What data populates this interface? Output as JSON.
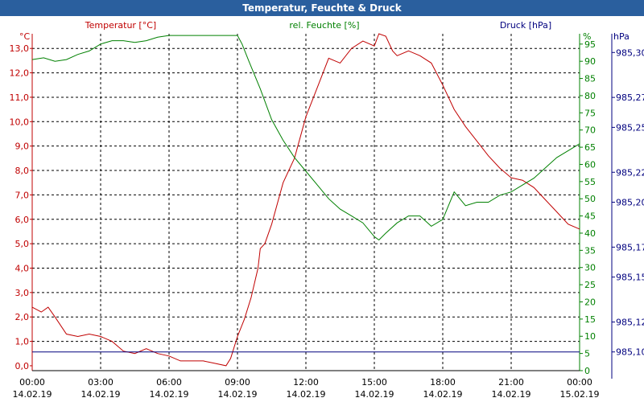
{
  "window": {
    "title": "Temperatur, Feuchte & Druck"
  },
  "colors": {
    "temperature": "#c00000",
    "humidity": "#008000",
    "pressure": "#00007f",
    "titlebar": "#2a5f9e"
  },
  "chart_data": {
    "type": "line",
    "title": "Temperatur, Feuchte & Druck",
    "grid": true,
    "x_tick_labels": [
      [
        "00:00",
        "14.02.19"
      ],
      [
        "03:00",
        "14.02.19"
      ],
      [
        "06:00",
        "14.02.19"
      ],
      [
        "09:00",
        "14.02.19"
      ],
      [
        "12:00",
        "14.02.19"
      ],
      [
        "15:00",
        "14.02.19"
      ],
      [
        "18:00",
        "14.02.19"
      ],
      [
        "21:00",
        "14.02.19"
      ],
      [
        "00:00",
        "15.02.19"
      ]
    ],
    "x_range_hours": [
      0,
      24
    ],
    "axes": {
      "temperature": {
        "label": "Temperatur [°C]",
        "unit": "°C",
        "range": [
          -0.2,
          13.6
        ],
        "ticks": [
          "0,0",
          "1,0",
          "2,0",
          "3,0",
          "4,0",
          "5,0",
          "6,0",
          "7,0",
          "8,0",
          "9,0",
          "10,0",
          "11,0",
          "12,0",
          "13,0"
        ]
      },
      "humidity": {
        "label": "rel. Feuchte [%]",
        "unit": "%",
        "range": [
          0,
          98
        ],
        "ticks": [
          "0",
          "5",
          "10",
          "15",
          "20",
          "25",
          "30",
          "35",
          "40",
          "45",
          "50",
          "55",
          "60",
          "65",
          "70",
          "75",
          "80",
          "85",
          "90",
          "95"
        ]
      },
      "pressure": {
        "label": "Druck [hPa]",
        "unit": "hPa",
        "range": [
          985.0875,
          985.3125
        ],
        "ticks": [
          "985,10",
          "985,12",
          "985,15",
          "985,17",
          "985,20",
          "985,22",
          "985,25",
          "985,27",
          "985,30"
        ]
      }
    },
    "series": [
      {
        "name": "Temperatur [°C]",
        "axis": "temperature",
        "x": [
          0,
          0.4,
          0.7,
          1,
          1.5,
          2,
          2.5,
          3,
          3.5,
          4,
          4.5,
          5,
          5.5,
          6,
          6.5,
          7,
          7.5,
          8,
          8.5,
          8.7,
          9,
          9.3,
          9.6,
          9.9,
          10,
          10.2,
          10.5,
          11,
          11.5,
          12,
          12.5,
          13,
          13.5,
          14,
          14.5,
          15,
          15.2,
          15.5,
          15.8,
          16,
          16.5,
          17,
          17.5,
          18,
          18.5,
          19,
          19.5,
          20,
          20.5,
          21,
          21.5,
          22,
          22.5,
          23,
          23.5,
          24
        ],
        "y": [
          2.4,
          2.2,
          2.4,
          2.0,
          1.3,
          1.2,
          1.3,
          1.2,
          1.0,
          0.6,
          0.5,
          0.7,
          0.5,
          0.4,
          0.2,
          0.2,
          0.2,
          0.1,
          0.0,
          0.3,
          1.2,
          1.9,
          2.8,
          4.0,
          4.8,
          5.0,
          5.8,
          7.5,
          8.5,
          10.2,
          11.4,
          12.6,
          12.4,
          13.0,
          13.3,
          13.1,
          13.6,
          13.5,
          12.9,
          12.7,
          12.9,
          12.7,
          12.4,
          11.5,
          10.5,
          9.8,
          9.2,
          8.6,
          8.1,
          7.7,
          7.6,
          7.3,
          6.8,
          6.3,
          5.8,
          5.6
        ]
      },
      {
        "name": "rel. Feuchte [%]",
        "axis": "humidity",
        "x": [
          0,
          0.5,
          1,
          1.5,
          2,
          2.5,
          3,
          3.5,
          4,
          4.5,
          5,
          5.5,
          6,
          6.5,
          7,
          7.5,
          8,
          8.5,
          9,
          9.2,
          9.5,
          10,
          10.5,
          11,
          11.5,
          12,
          12.5,
          13,
          13.5,
          14,
          14.5,
          15,
          15.2,
          15.5,
          16,
          16.5,
          17,
          17.5,
          18,
          18.5,
          19,
          19.5,
          20,
          20.5,
          21,
          21.5,
          22,
          22.5,
          23,
          23.5,
          24
        ],
        "y": [
          90.5,
          91,
          90,
          90.5,
          92,
          93,
          95,
          96,
          96,
          95.5,
          96,
          97,
          97.5,
          97.5,
          97.5,
          97.5,
          97.5,
          97.5,
          97.5,
          95,
          90,
          82,
          73,
          67,
          62,
          58,
          54,
          50,
          47,
          45,
          43,
          39,
          38,
          40,
          43,
          45,
          45,
          42,
          44,
          52,
          48,
          49,
          49,
          51,
          52,
          54,
          56,
          59,
          62,
          64,
          66
        ]
      },
      {
        "name": "Druck [hPa]",
        "axis": "pressure",
        "x": [
          0,
          24
        ],
        "y": [
          985.1,
          985.1
        ]
      }
    ]
  }
}
